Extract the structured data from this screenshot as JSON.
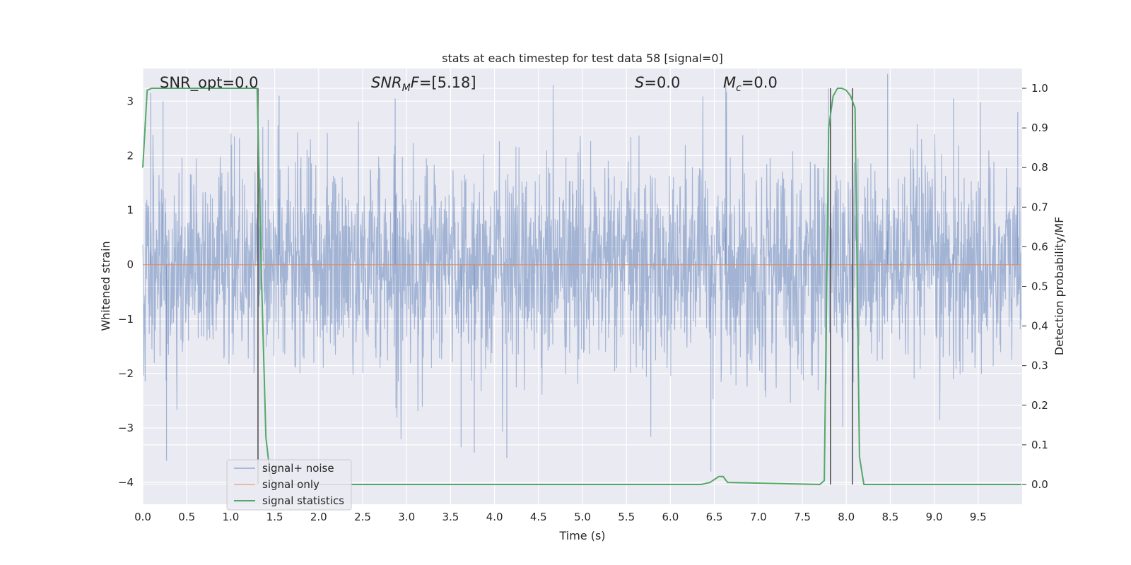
{
  "chart_data": {
    "type": "line",
    "title": "stats at each timestep for test data 58 [signal=0]",
    "xlabel": "Time (s)",
    "ylabel": "Whitened strain",
    "y2label": "Detection probability/MF",
    "xlim": [
      0.0,
      10.0
    ],
    "ylim": [
      -4.4,
      3.6
    ],
    "y2lim": [
      -0.05,
      1.05
    ],
    "xticks": [
      "0.0",
      "0.5",
      "1.0",
      "1.5",
      "2.0",
      "2.5",
      "3.0",
      "3.5",
      "4.0",
      "4.5",
      "5.0",
      "5.5",
      "6.0",
      "6.5",
      "7.0",
      "7.5",
      "8.0",
      "8.5",
      "9.0",
      "9.5"
    ],
    "yticks": [
      "3",
      "2",
      "1",
      "0",
      "−1",
      "−2",
      "−3",
      "−4"
    ],
    "y2ticks": [
      "1.0",
      "0.9",
      "0.8",
      "0.7",
      "0.6",
      "0.5",
      "0.4",
      "0.3",
      "0.2",
      "0.1",
      "0.0"
    ],
    "grid": true,
    "legend_position": "lower-left",
    "colors": {
      "noise": "#4c72b0",
      "signal": "#dd8452",
      "stats": "#55a868",
      "markers": "#555555",
      "background": "#eaeaf2",
      "grid": "#ffffff"
    },
    "series": [
      {
        "name": "signal+ noise",
        "axis": "left",
        "description_values": "whitened noise samples, approx. |amplitude| <= 3.5",
        "typical_range": [
          -1.8,
          1.9
        ],
        "peak_spikes": [
          {
            "x": 0.09,
            "y": 3.15
          },
          {
            "x": 0.23,
            "y": 3.0
          },
          {
            "x": 0.27,
            "y": -3.6
          },
          {
            "x": 1.55,
            "y": 3.1
          },
          {
            "x": 2.87,
            "y": 3.05
          },
          {
            "x": 3.62,
            "y": -3.35
          },
          {
            "x": 3.77,
            "y": -3.45
          },
          {
            "x": 4.14,
            "y": -3.55
          },
          {
            "x": 6.46,
            "y": -3.8
          },
          {
            "x": 6.63,
            "y": 3.3
          },
          {
            "x": 8.47,
            "y": 3.5
          },
          {
            "x": 9.22,
            "y": 3.05
          },
          {
            "x": 9.95,
            "y": 2.8
          }
        ]
      },
      {
        "name": "signal only",
        "axis": "left",
        "x": [
          0.0,
          9.99
        ],
        "y": [
          0.0,
          0.0
        ]
      },
      {
        "name": "signal statistics",
        "axis": "right",
        "x": [
          0.0,
          0.05,
          0.1,
          0.95,
          1.3,
          1.35,
          1.4,
          1.45,
          1.5,
          6.35,
          6.45,
          6.55,
          6.6,
          6.65,
          7.7,
          7.75,
          7.8,
          7.85,
          7.9,
          7.95,
          8.0,
          8.05,
          8.1,
          8.15,
          8.2,
          9.99
        ],
        "y": [
          0.8,
          0.995,
          1.0,
          1.0,
          1.0,
          0.52,
          0.12,
          0.02,
          0.0,
          0.0,
          0.005,
          0.02,
          0.02,
          0.005,
          0.0,
          0.01,
          0.9,
          0.98,
          1.0,
          1.0,
          0.995,
          0.98,
          0.95,
          0.07,
          0.0,
          0.0
        ]
      }
    ],
    "vertical_markers_x": [
      1.31,
      7.82,
      8.07
    ],
    "annotations": [
      {
        "key": "snr_opt",
        "label": "SNR_opt=0.0"
      },
      {
        "key": "snr_mf",
        "label": "SNR_MF=[5.18]"
      },
      {
        "key": "s",
        "label": "S=0.0"
      },
      {
        "key": "mc",
        "label": "M_c=0.0"
      }
    ]
  }
}
